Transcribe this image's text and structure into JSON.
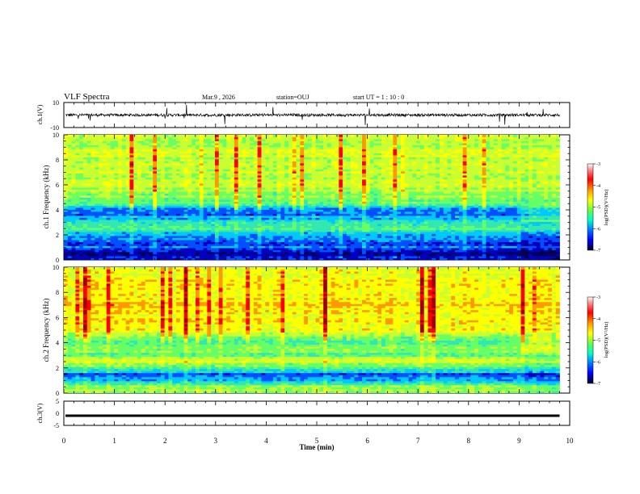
{
  "header": {
    "title": "VLF Spectra",
    "date": "Mar.9 , 2026",
    "station": "station=OUJ",
    "start": "start UT = 1 : 10 : 0"
  },
  "colors": {
    "spec_bands": [
      "#000050",
      "#0000c0",
      "#0050ff",
      "#00c8ff",
      "#33e8b0",
      "#66ff66",
      "#c8ff33",
      "#ffff00",
      "#ff9900",
      "#ff0000",
      "#a00000"
    ],
    "trace": "#000000"
  },
  "chart_data": [
    {
      "type": "line",
      "name": "ch1-waveform",
      "ylabel": "ch.1(V)",
      "ylim": [
        -10,
        10
      ],
      "yticks": [
        "10",
        "-10"
      ],
      "xlim": [
        0,
        10
      ],
      "baseline": 0,
      "note_level_relative": "near zero with noise spikes"
    },
    {
      "type": "heatmap",
      "name": "ch1-spectrogram",
      "ylabel": "ch.1 Frequency (kHz)",
      "ylim": [
        0,
        10
      ],
      "yticks": [
        "0",
        "2",
        "4",
        "6",
        "8",
        "10"
      ],
      "xlim": [
        0,
        10
      ],
      "colorbar": {
        "label": "log(PSD)(V²/Hz)",
        "range": [
          -7,
          -3
        ],
        "ticks": [
          "-3",
          "-4",
          "-5",
          "-6",
          "-7"
        ]
      },
      "profile_khz": [
        [
          0.0,
          0.15
        ],
        [
          0.5,
          0.08
        ],
        [
          1.0,
          0.2
        ],
        [
          1.5,
          0.2
        ],
        [
          2.0,
          0.3
        ],
        [
          2.3,
          0.35
        ],
        [
          2.6,
          0.5
        ],
        [
          3.0,
          0.35
        ],
        [
          3.5,
          0.25
        ],
        [
          4.0,
          0.25
        ],
        [
          4.5,
          0.45
        ],
        [
          5.0,
          0.55
        ],
        [
          6.0,
          0.6
        ],
        [
          7.0,
          0.62
        ],
        [
          8.0,
          0.62
        ],
        [
          9.0,
          0.6
        ],
        [
          10.0,
          0.58
        ]
      ],
      "change_at_min": 9.0
    },
    {
      "type": "heatmap",
      "name": "ch2-spectrogram",
      "ylabel": "ch.2 Frequency (kHz)",
      "ylim": [
        0,
        10
      ],
      "yticks": [
        "0",
        "2",
        "4",
        "6",
        "8",
        "10"
      ],
      "xlim": [
        0,
        10
      ],
      "colorbar": {
        "label": "log(PSD)(V²/Hz)",
        "range": [
          -7,
          -3
        ],
        "ticks": [
          "-3",
          "-4",
          "-5",
          "-6",
          "-7"
        ]
      },
      "profile_khz": [
        [
          0.0,
          0.5
        ],
        [
          0.5,
          0.55
        ],
        [
          1.0,
          0.25
        ],
        [
          1.5,
          0.2
        ],
        [
          2.0,
          0.45
        ],
        [
          2.5,
          0.6
        ],
        [
          3.0,
          0.5
        ],
        [
          3.5,
          0.5
        ],
        [
          4.0,
          0.45
        ],
        [
          4.5,
          0.55
        ],
        [
          5.0,
          0.72
        ],
        [
          5.5,
          0.68
        ],
        [
          6.0,
          0.7
        ],
        [
          7.0,
          0.72
        ],
        [
          8.0,
          0.7
        ],
        [
          9.0,
          0.68
        ],
        [
          10.0,
          0.66
        ]
      ],
      "change_at_min": 9.0
    },
    {
      "type": "line",
      "name": "ch3-waveform",
      "ylabel": "ch.3(V)",
      "ylim": [
        -5,
        5
      ],
      "yticks": [
        "5",
        "0",
        "-5"
      ],
      "xlim": [
        0,
        10
      ],
      "baseline": -1
    }
  ],
  "x_axis": {
    "label": "Time (min)",
    "ticks": [
      "0",
      "1",
      "2",
      "3",
      "4",
      "5",
      "6",
      "7",
      "8",
      "9",
      "10"
    ],
    "data_end_min": 9.8
  }
}
